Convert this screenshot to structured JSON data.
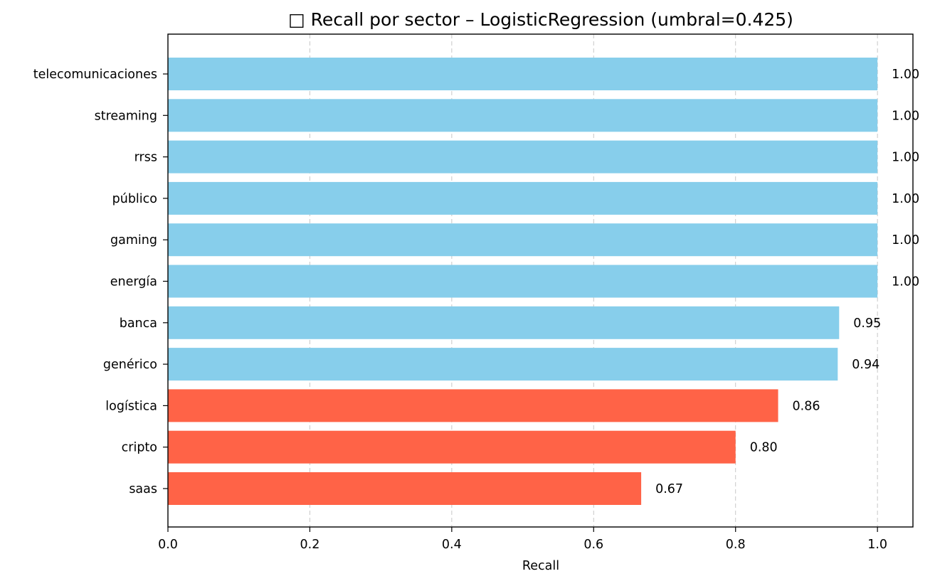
{
  "chart_data": {
    "type": "bar",
    "orientation": "horizontal",
    "title": "□ Recall por sector – LogisticRegression (umbral=0.425)",
    "xlabel": "Recall",
    "ylabel": "",
    "xlim": [
      0.0,
      1.05
    ],
    "x_ticks": [
      "0.0",
      "0.2",
      "0.4",
      "0.6",
      "0.8",
      "1.0"
    ],
    "grid": "x-dashed",
    "categories": [
      "telecomunicaciones",
      "streaming",
      "rrss",
      "público",
      "gaming",
      "energía",
      "banca",
      "genérico",
      "logística",
      "cripto",
      "saas"
    ],
    "values": [
      1.0,
      1.0,
      1.0,
      1.0,
      1.0,
      1.0,
      0.946,
      0.944,
      0.86,
      0.8,
      0.667
    ],
    "value_labels": [
      "1.00",
      "1.00",
      "1.00",
      "1.00",
      "1.00",
      "1.00",
      "0.95",
      "0.94",
      "0.86",
      "0.80",
      "0.67"
    ],
    "bar_colors": [
      "#87CEEB",
      "#87CEEB",
      "#87CEEB",
      "#87CEEB",
      "#87CEEB",
      "#87CEEB",
      "#87CEEB",
      "#87CEEB",
      "#FF6347",
      "#FF6347",
      "#FF6347"
    ]
  }
}
